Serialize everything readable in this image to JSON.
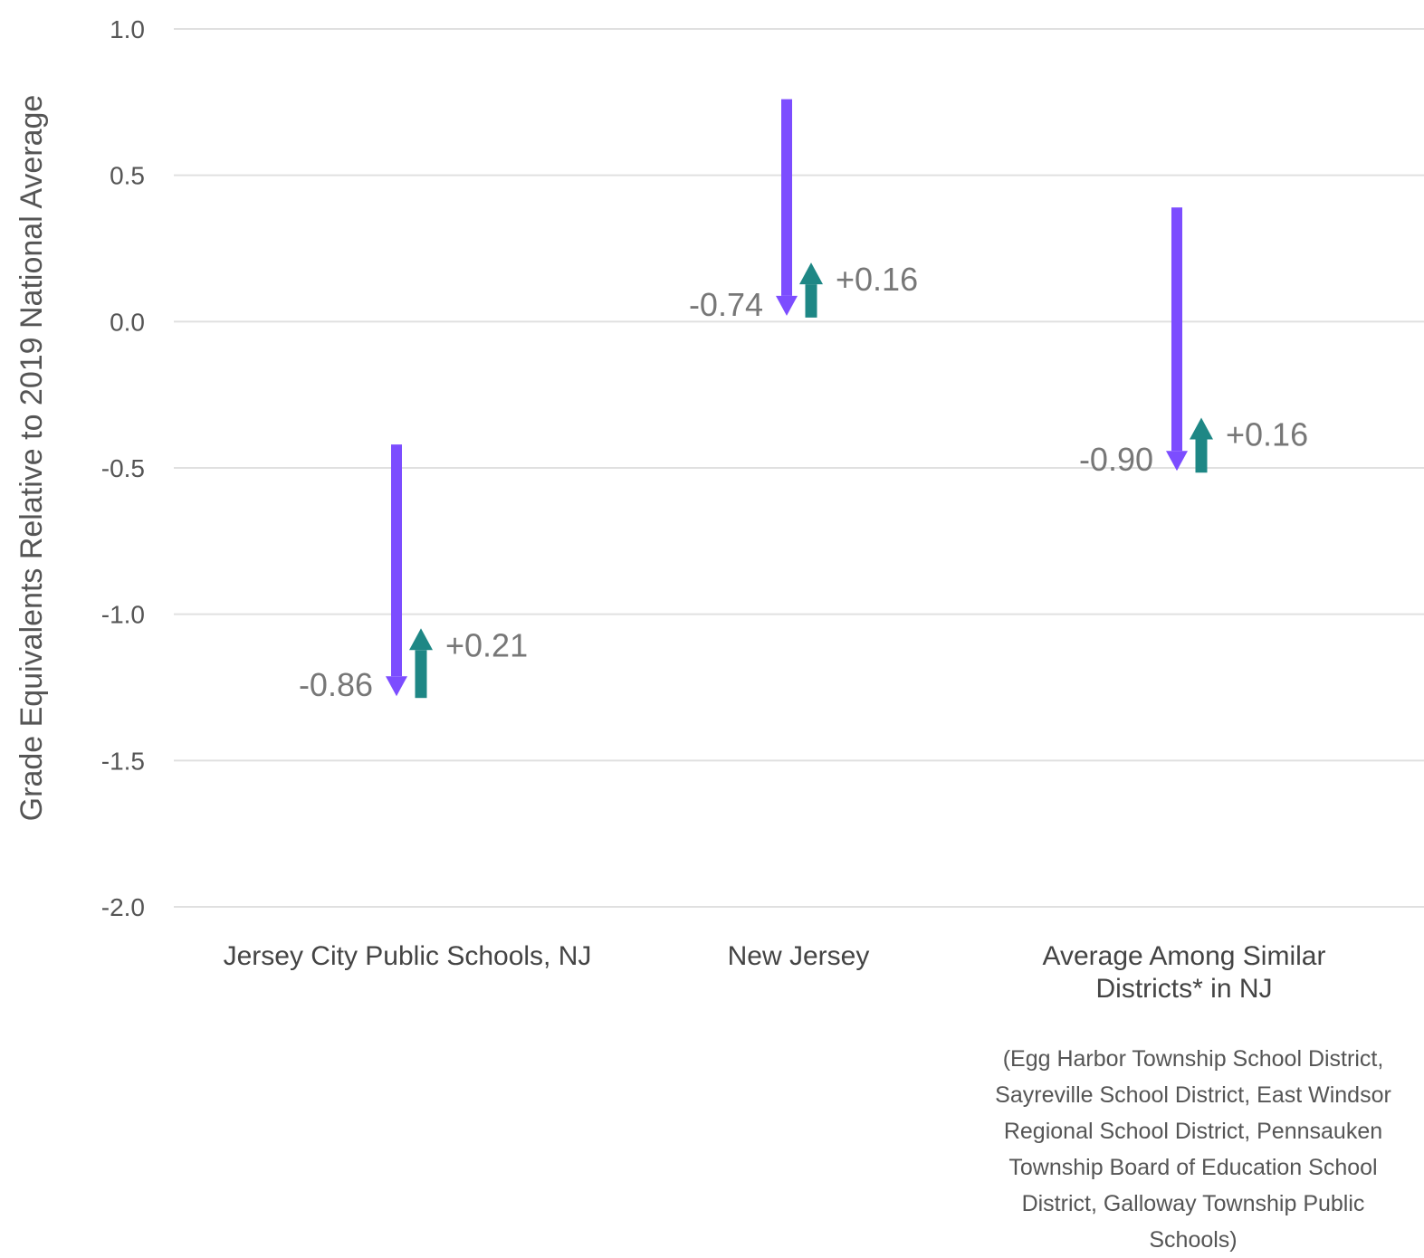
{
  "chart_data": {
    "type": "arrow-range",
    "ylabel": "Grade Equivalents Relative to 2019 National Average",
    "ylim": [
      -2.0,
      1.0
    ],
    "yticks": [
      "1.0",
      "0.5",
      "0.0",
      "-0.5",
      "-1.0",
      "-1.5",
      "-2.0"
    ],
    "ytick_values": [
      1.0,
      0.5,
      0.0,
      -0.5,
      -1.0,
      -1.5,
      -2.0
    ],
    "grid": true,
    "categories": [
      {
        "label_lines": [
          "Jersey City Public Schools, NJ"
        ],
        "note_lines": [],
        "start": -0.42,
        "decline": -0.86,
        "decline_label": "-0.86",
        "recovery": 0.21,
        "recovery_label": "+0.21"
      },
      {
        "label_lines": [
          "New Jersey"
        ],
        "note_lines": [],
        "start": 0.76,
        "decline": -0.74,
        "decline_label": "-0.74",
        "recovery": 0.16,
        "recovery_label": "+0.16"
      },
      {
        "label_lines": [
          "Average Among Similar",
          "Districts* in NJ"
        ],
        "note_lines": [
          "(Egg Harbor Township School District,",
          "Sayreville School District, East Windsor",
          "Regional School District, Pennsauken",
          "Township Board of Education School",
          "District, Galloway Township Public",
          "Schools)"
        ],
        "start": 0.39,
        "decline": -0.9,
        "decline_label": "-0.90",
        "recovery": 0.16,
        "recovery_label": "+0.16"
      }
    ],
    "colors": {
      "decline": "#7c4dff",
      "recovery": "#1e8785",
      "grid": "#e0e0e0"
    }
  }
}
